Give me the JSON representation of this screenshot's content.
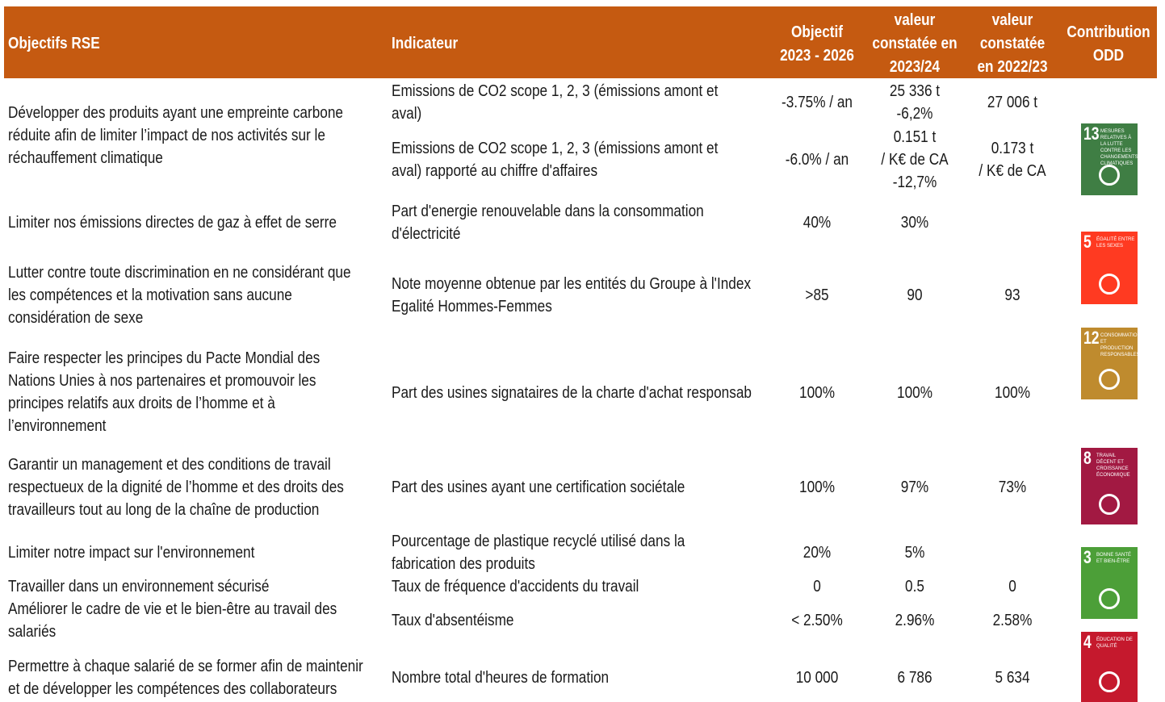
{
  "header": {
    "columns": [
      {
        "lines": [
          "Objectifs RSE"
        ]
      },
      {
        "lines": [
          "Indicateur"
        ]
      },
      {
        "lines": [
          "Objectif",
          "2023 - 2026"
        ]
      },
      {
        "lines": [
          "valeur",
          "constatée en",
          "2023/24"
        ]
      },
      {
        "lines": [
          "valeur",
          "constatée",
          "en 2022/23"
        ]
      },
      {
        "lines": [
          "Contribution",
          "ODD"
        ]
      }
    ]
  },
  "rows": [
    {
      "objective": [
        "Développer des produits ayant une empreinte carbone",
        "réduite afin de limiter l’impact de nos activités sur le",
        "réchauffement climatique"
      ],
      "indicators": [
        {
          "indicator": [
            "Emissions de CO2 scope 1, 2, 3 (émissions amont et",
            "aval)"
          ],
          "objectif": [
            "-3.75% / an"
          ],
          "valeur_2023_24": [
            "25 336 t",
            "-6,2%"
          ],
          "valeur_2022_23": [
            "27 006 t"
          ]
        },
        {
          "indicator": [
            "Emissions de CO2 scope 1, 2, 3 (émissions amont et",
            "aval) rapporté au chiffre d'affaires"
          ],
          "objectif": [
            "-6.0% / an"
          ],
          "valeur_2023_24": [
            "0.151 t",
            "/ K€ de CA",
            "-12,7%"
          ],
          "valeur_2022_23": [
            "0.173 t",
            "/ K€ de CA"
          ]
        }
      ]
    },
    {
      "objective": [
        "Limiter nos émissions directes de gaz à effet de serre"
      ],
      "indicators": [
        {
          "indicator": [
            "Part d'energie renouvelable dans la consommation",
            "d'électricité"
          ],
          "objectif": [
            "40%"
          ],
          "valeur_2023_24": [
            "30%"
          ]
        }
      ]
    },
    {
      "objective": [
        "Lutter contre toute discrimination en ne considérant que",
        "les compétences et la motivation sans aucune",
        "considération de sexe"
      ],
      "indicators": [
        {
          "indicator": [
            "Note moyenne obtenue par les entités du Groupe à l'Index",
            "Egalité Hommes-Femmes"
          ],
          "objectif": [
            ">85"
          ],
          "valeur_2023_24": [
            "90"
          ],
          "valeur_2022_23": [
            "93"
          ]
        }
      ]
    },
    {
      "objective": [
        "Faire respecter les principes du Pacte Mondial des",
        "Nations Unies à nos partenaires et promouvoir les",
        "principes relatifs aux droits de l’homme et à",
        "l’environnement"
      ],
      "indicators": [
        {
          "indicator": [
            "Part des usines signataires de la charte d'achat responsab"
          ],
          "objectif": [
            "100%"
          ],
          "valeur_2023_24": [
            "100%"
          ],
          "valeur_2022_23": [
            "100%"
          ]
        }
      ]
    },
    {
      "objective": [
        "Garantir un management et des conditions de travail",
        "respectueux de la dignité de l’homme et des droits des",
        "travailleurs tout au long de la chaîne de production"
      ],
      "indicators": [
        {
          "indicator": [
            "Part des usines ayant une certification sociétale"
          ],
          "objectif": [
            "100%"
          ],
          "valeur_2023_24": [
            "97%"
          ],
          "valeur_2022_23": [
            "73%"
          ]
        }
      ]
    },
    {
      "objective": [
        "Limiter notre impact sur l'environnement"
      ],
      "indicators": [
        {
          "indicator": [
            "Pourcentage de plastique recyclé utilisé dans la",
            "fabrication des produits"
          ],
          "objectif": [
            "20%"
          ],
          "valeur_2023_24": [
            "5%"
          ]
        }
      ]
    },
    {
      "objective": [
        "Travailler dans un environnement sécurisé"
      ],
      "indicators": [
        {
          "indicator": [
            "Taux de fréquence d'accidents du travail"
          ],
          "objectif": [
            "0"
          ],
          "valeur_2023_24": [
            "0.5"
          ],
          "valeur_2022_23": [
            "0"
          ]
        }
      ]
    },
    {
      "objective": [
        "Améliorer le cadre de vie et le bien-être au travail des",
        "salariés"
      ],
      "indicators": [
        {
          "indicator": [
            "Taux d'absentéisme"
          ],
          "objectif": [
            "< 2.50%"
          ],
          "valeur_2023_24": [
            "2.96%"
          ],
          "valeur_2022_23": [
            "2.58%"
          ]
        }
      ]
    },
    {
      "objective": [
        "Permettre à chaque salarié de se former afin de maintenir",
        "et de développer les compétences des collaborateurs"
      ],
      "indicators": [
        {
          "indicator": [
            "Nombre total d'heures de formation"
          ],
          "objectif": [
            "10 000"
          ],
          "valeur_2023_24": [
            "6 786"
          ],
          "valeur_2022_23": [
            "5 634"
          ]
        }
      ]
    }
  ],
  "odd_icons": [
    {
      "number": "13",
      "label": "Mesures relatives à la lutte contre les changements climatiques",
      "color": "#3f7e44"
    },
    {
      "number": "5",
      "label": "Égalité entre les sexes",
      "color": "#ff3a21"
    },
    {
      "number": "12",
      "label": "Consommation et production responsables",
      "color": "#bf8b2e"
    },
    {
      "number": "8",
      "label": "Travail décent et croissance économique",
      "color": "#a21942"
    },
    {
      "number": "3",
      "label": "Bonne santé et bien-être",
      "color": "#4c9f38"
    },
    {
      "number": "4",
      "label": "Éducation de qualité",
      "color": "#c5192d"
    }
  ]
}
